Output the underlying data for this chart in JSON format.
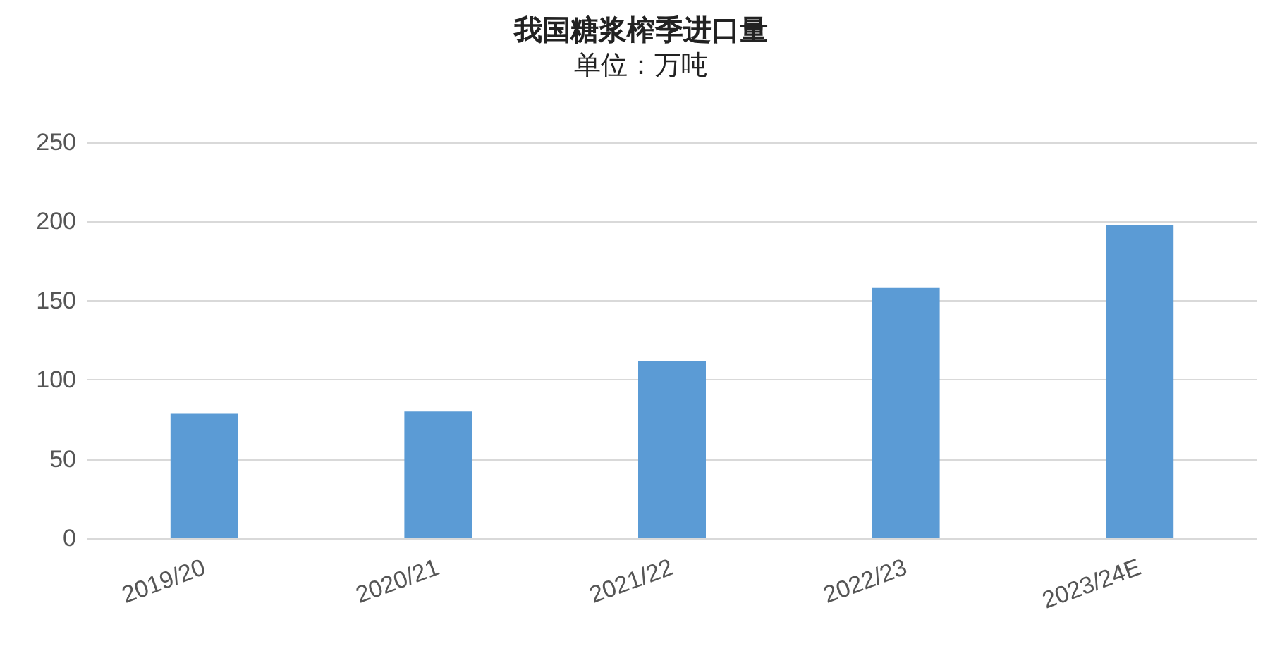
{
  "chart_data": {
    "type": "bar",
    "title": "我国糖浆榨季进口量",
    "subtitle": "单位：万吨",
    "categories": [
      "2019/20",
      "2020/21",
      "2021/22",
      "2022/23",
      "2023/24E"
    ],
    "values": [
      79,
      80,
      112,
      158,
      198
    ],
    "color": "#5b9bd5",
    "ylim": [
      0,
      250
    ],
    "yticks": [
      0,
      50,
      100,
      150,
      200,
      250
    ],
    "grid": "y"
  }
}
